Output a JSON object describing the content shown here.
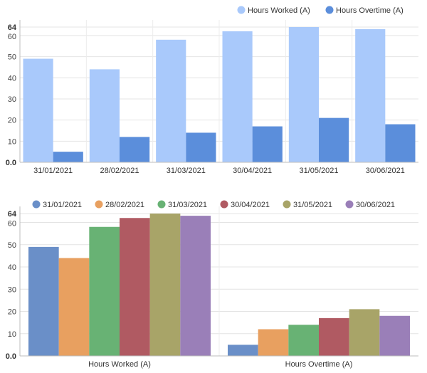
{
  "chart_data": [
    {
      "type": "bar",
      "categories": [
        "31/01/2021",
        "28/02/2021",
        "31/03/2021",
        "30/04/2021",
        "31/05/2021",
        "30/06/2021"
      ],
      "series": [
        {
          "name": "Hours Worked (A)",
          "color": "#a9c9fb",
          "values": [
            49,
            44,
            58,
            62,
            64,
            63
          ]
        },
        {
          "name": "Hours Overtime (A)",
          "color": "#5b8edb",
          "values": [
            5,
            12,
            14,
            17,
            21,
            18
          ]
        }
      ],
      "ylim": [
        0,
        64
      ],
      "yticks": [
        "0.0",
        "10",
        "20",
        "30",
        "40",
        "50",
        "60",
        "64"
      ],
      "grid": true,
      "legend": "top-right"
    },
    {
      "type": "bar",
      "categories": [
        "Hours Worked (A)",
        "Hours Overtime (A)"
      ],
      "series": [
        {
          "name": "31/01/2021",
          "color": "#6a8fc8",
          "values": [
            49,
            5
          ]
        },
        {
          "name": "28/02/2021",
          "color": "#e8a060",
          "values": [
            44,
            12
          ]
        },
        {
          "name": "31/03/2021",
          "color": "#68b274",
          "values": [
            58,
            14
          ]
        },
        {
          "name": "30/04/2021",
          "color": "#b05a62",
          "values": [
            62,
            17
          ]
        },
        {
          "name": "31/05/2021",
          "color": "#a8a468",
          "values": [
            64,
            21
          ]
        },
        {
          "name": "30/06/2021",
          "color": "#9a7fb8",
          "values": [
            63,
            18
          ]
        }
      ],
      "ylim": [
        0,
        64
      ],
      "yticks": [
        "0.0",
        "10",
        "20",
        "30",
        "40",
        "50",
        "60",
        "64"
      ],
      "grid": true,
      "legend": "top"
    }
  ]
}
